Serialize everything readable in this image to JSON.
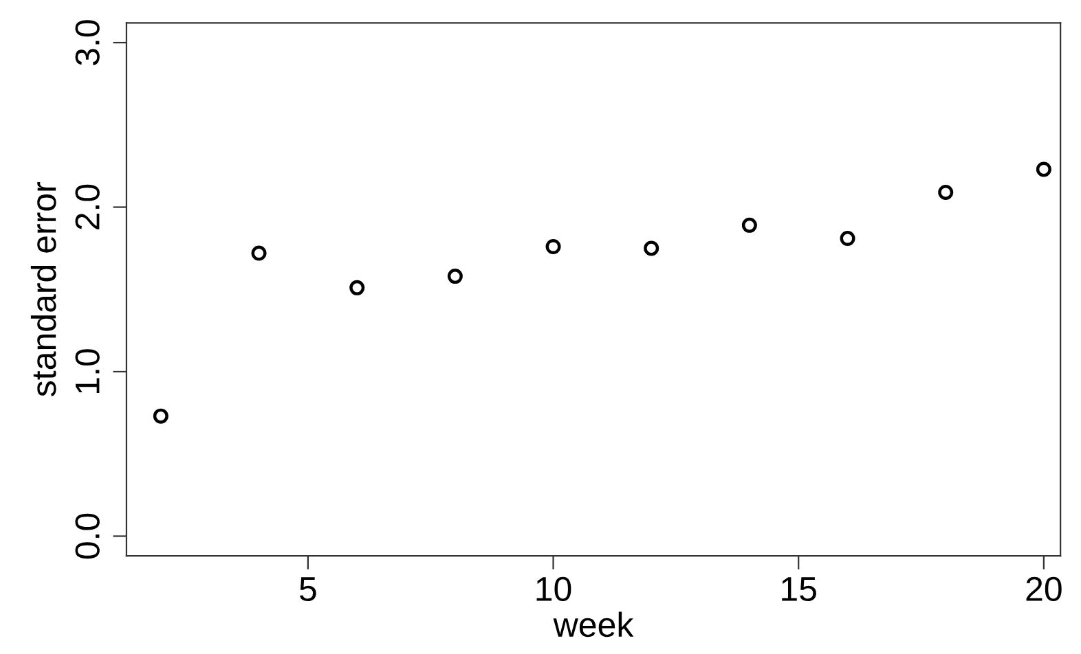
{
  "chart_data": {
    "type": "scatter",
    "xlabel": "week",
    "ylabel": "standard error",
    "x": [
      2,
      4,
      6,
      8,
      10,
      12,
      14,
      16,
      18,
      20
    ],
    "values": [
      0.73,
      1.72,
      1.51,
      1.58,
      1.76,
      1.75,
      1.89,
      1.81,
      2.09,
      2.23
    ],
    "color": "#000000",
    "marker": "circle",
    "grid": false,
    "xlim": [
      1.3,
      20.34
    ],
    "xticks": [
      5,
      10,
      15,
      20
    ],
    "ylim": [
      -0.12,
      3.12
    ],
    "yticks": [
      {
        "value": 0,
        "label": "0.0"
      },
      {
        "value": 1,
        "label": "1.0"
      },
      {
        "value": 2,
        "label": "2.0"
      },
      {
        "value": 3,
        "label": "3.0"
      }
    ]
  }
}
